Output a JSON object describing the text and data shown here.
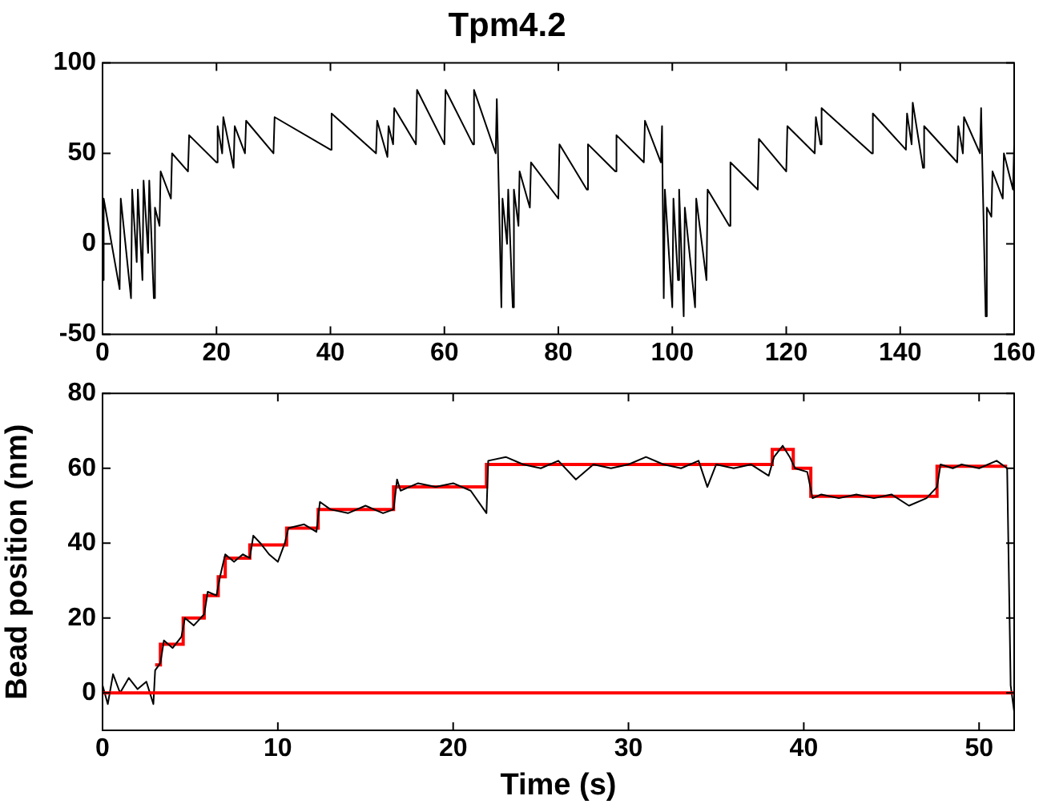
{
  "chart_data": [
    {
      "type": "line",
      "title": "Tpm4.2",
      "xlim": [
        0,
        160
      ],
      "xticks": [
        0,
        20,
        40,
        60,
        80,
        100,
        120,
        140,
        160
      ],
      "ylim": [
        -50,
        100
      ],
      "yticks": [
        -50,
        0,
        50,
        100
      ],
      "grid": false,
      "legend": false,
      "marker": "none",
      "line_style": "solid",
      "series": [
        {
          "color": "#000000",
          "x": [
            0,
            0.2,
            3,
            3.2,
            5,
            5.2,
            6,
            6.2,
            7,
            7.2,
            8,
            8.2,
            9,
            9.2,
            10,
            10.2,
            12,
            12.2,
            15,
            15.2,
            20,
            20.2,
            21,
            21.2,
            23,
            23.2,
            25,
            25.2,
            30,
            30.2,
            40,
            40.2,
            48,
            48.2,
            50,
            50.2,
            51,
            51.2,
            55,
            55.2,
            60,
            60.2,
            65,
            65.2,
            69,
            69.2,
            70,
            70.2,
            71,
            71.2,
            72,
            72.2,
            73,
            73.2,
            75,
            75.2,
            80,
            80.2,
            85,
            85.2,
            90,
            90.2,
            95,
            95.2,
            98,
            98.2,
            98.5,
            98.7,
            100,
            100.2,
            101,
            101.2,
            102,
            102.2,
            104,
            104.2,
            106,
            106.2,
            110,
            110.2,
            115,
            115.2,
            120,
            120.2,
            125,
            125.2,
            126,
            126.2,
            135,
            135.2,
            141,
            141.2,
            142,
            142.2,
            144,
            144.2,
            150,
            150.2,
            151,
            151.2,
            154,
            154.2,
            155,
            155.2,
            156,
            156.2,
            158,
            158.2,
            159.8,
            160
          ],
          "values": [
            -20,
            25,
            -25,
            25,
            -30,
            30,
            -10,
            30,
            -20,
            35,
            -5,
            35,
            -30,
            20,
            10,
            40,
            25,
            50,
            40,
            60,
            45,
            65,
            50,
            70,
            42,
            65,
            50,
            68,
            50,
            70,
            52,
            72,
            50,
            68,
            48,
            65,
            55,
            75,
            55,
            85,
            55,
            85,
            55,
            85,
            50,
            80,
            -35,
            25,
            0,
            30,
            -35,
            30,
            10,
            40,
            20,
            45,
            25,
            55,
            30,
            55,
            40,
            60,
            45,
            68,
            45,
            65,
            -30,
            30,
            -35,
            25,
            -20,
            30,
            -40,
            20,
            -35,
            25,
            -20,
            30,
            10,
            45,
            30,
            58,
            40,
            65,
            50,
            70,
            55,
            75,
            50,
            72,
            52,
            72,
            55,
            78,
            42,
            65,
            45,
            65,
            50,
            70,
            50,
            75,
            -40,
            20,
            15,
            40,
            25,
            50,
            30,
            55
          ]
        }
      ]
    },
    {
      "type": "line",
      "xlabel": "Time (s)",
      "ylabel": "Bead position (nm)",
      "xlim": [
        0,
        52
      ],
      "xticks": [
        0,
        10,
        20,
        30,
        40,
        50
      ],
      "ylim": [
        -10,
        80
      ],
      "yticks": [
        0,
        20,
        40,
        60,
        80
      ],
      "grid": false,
      "legend": false,
      "marker": "none",
      "line_style": "solid",
      "ref_lines": [
        {
          "axis": "y",
          "value": 0,
          "color": "#ff0000"
        }
      ],
      "series": [
        {
          "color": "#000000",
          "x": [
            0,
            0.3,
            0.6,
            1,
            1.5,
            2,
            2.5,
            2.9,
            3,
            3.3,
            3.5,
            4,
            4.5,
            4.7,
            5.2,
            5.8,
            6,
            6.5,
            6.7,
            7,
            7.5,
            8,
            8.4,
            8.6,
            9,
            9.5,
            10,
            10.4,
            10.6,
            11.5,
            12.2,
            12.4,
            13,
            14,
            15,
            16,
            16.6,
            16.8,
            17,
            18,
            19,
            20,
            21,
            21.9,
            22,
            23,
            24,
            25,
            26,
            27,
            28,
            29,
            30,
            31,
            32,
            33,
            34,
            34.5,
            35,
            36,
            37,
            38,
            38.3,
            38.8,
            39.2,
            39.5,
            40.2,
            40.5,
            41,
            42,
            43,
            44,
            45,
            46,
            47,
            47.6,
            47.8,
            48.5,
            49,
            50,
            51,
            51.6,
            51.8,
            52
          ],
          "values": [
            2,
            -3,
            5,
            0,
            4,
            1,
            3,
            -3,
            6,
            8,
            14,
            12,
            15,
            20,
            18,
            21,
            27,
            26,
            31,
            37,
            35,
            37,
            36,
            42,
            40,
            37,
            35,
            40,
            44,
            45,
            43,
            51,
            49,
            48,
            50,
            48,
            49,
            57,
            54,
            56,
            55,
            56,
            54,
            48,
            62,
            63,
            61,
            60,
            62,
            57,
            61,
            60,
            61,
            63,
            61,
            60,
            62,
            55,
            61,
            60,
            61,
            58,
            63,
            66,
            63,
            60,
            59,
            52,
            53,
            52,
            53,
            52,
            53,
            50,
            52,
            55,
            61,
            60,
            61,
            60,
            62,
            60,
            2,
            -5
          ]
        },
        {
          "type": "step",
          "color": "#ff0000",
          "x": [
            3,
            3.3,
            4.6,
            5.8,
            6.6,
            7,
            8.4,
            10.5,
            12.3,
            16.6,
            21.9,
            38.2,
            39.4,
            40.4,
            47.6,
            51.6
          ],
          "values": [
            7.5,
            13,
            20,
            26,
            31,
            36,
            39.5,
            44,
            49,
            55,
            61,
            65,
            60,
            52.5,
            60.5,
            60.5
          ]
        }
      ]
    }
  ]
}
